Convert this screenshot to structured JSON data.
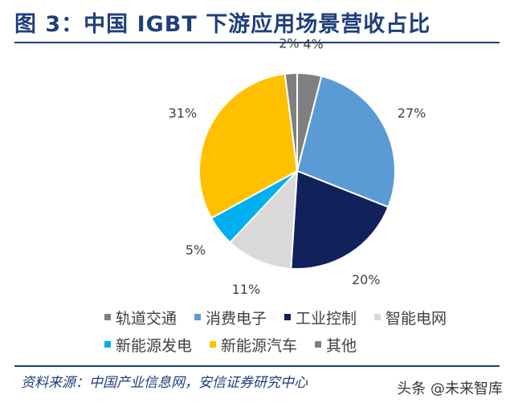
{
  "title": "图 3：中国 IGBT 下游应用场景营收占比",
  "source": "资料来源：中国产业信息网，安信证券研究中心",
  "watermark": "头条 @未来智库",
  "chart_data": {
    "type": "pie",
    "title": "图 3：中国 IGBT 下游应用场景营收占比",
    "legend_position": "bottom",
    "slices": [
      {
        "name": "轨道交通",
        "value": 4,
        "label": "4%",
        "color": "#7f7f7f"
      },
      {
        "name": "消费电子",
        "value": 27,
        "label": "27%",
        "color": "#5b9bd5"
      },
      {
        "name": "工业控制",
        "value": 20,
        "label": "20%",
        "color": "#10215b"
      },
      {
        "name": "智能电网",
        "value": 11,
        "label": "11%",
        "color": "#d9d9d9"
      },
      {
        "name": "新能源发电",
        "value": 5,
        "label": "5%",
        "color": "#00b0f0"
      },
      {
        "name": "新能源汽车",
        "value": 31,
        "label": "31%",
        "color": "#ffc000"
      },
      {
        "name": "其他",
        "value": 2,
        "label": "2%",
        "color": "#7f7f7f"
      }
    ]
  }
}
